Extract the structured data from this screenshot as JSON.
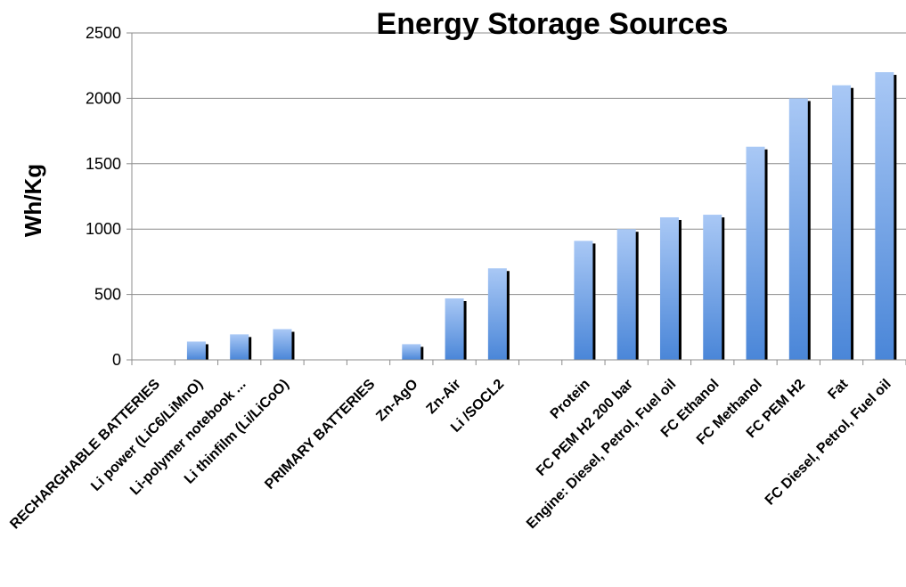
{
  "chart_data": {
    "type": "bar",
    "title": "Energy Storage Sources",
    "ylabel": "Wh/Kg",
    "xlabel": "",
    "ylim": [
      0,
      2500
    ],
    "yticks": [
      "0",
      "500",
      "1000",
      "1500",
      "2000",
      "2500"
    ],
    "grid": true,
    "legend": "none",
    "colors": {
      "bar_top": "#a9c8f5",
      "bar_bottom": "#4a86d8",
      "shadow": "#000000",
      "grid": "#8c8c8c"
    },
    "categories": [
      "RECHARGHABLE BATTERIES",
      "Li power (LiC6/LiMnO)",
      "Li-polymer notebook ...",
      "Li  thinfilm  (Li/LiCoO)",
      "",
      "PRIMARY BATTERIES",
      "Zn-AgO",
      "Zn-Air",
      "Li /SOCL2",
      "",
      "Protein",
      "FC PEM H2 200 bar",
      "Engine: Diesel, Petrol, Fuel oil",
      "FC Ethanol",
      "FC Methanol",
      "FC PEM H2",
      "Fat",
      "FC Diesel, Petrol, Fuel oil"
    ],
    "values": [
      0,
      140,
      195,
      235,
      0,
      0,
      120,
      470,
      700,
      0,
      910,
      1000,
      1090,
      1110,
      1630,
      2000,
      2100,
      2200
    ]
  }
}
